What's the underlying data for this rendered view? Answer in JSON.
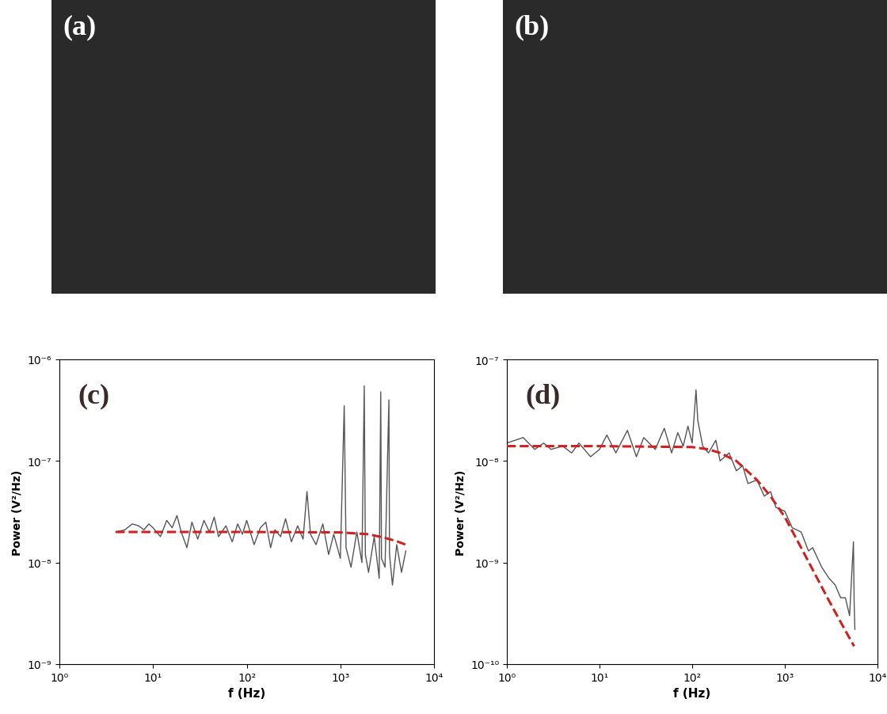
{
  "photos": [
    {
      "label": "(a)"
    },
    {
      "label": "(b)"
    }
  ],
  "chart_data": [
    {
      "type": "line",
      "panel_label": "(c)",
      "x_label": "f (Hz)",
      "y_label": "Power (V²/Hz)",
      "log": true,
      "grid": false,
      "xlim": [
        1,
        10000
      ],
      "xticks": [
        {
          "value": 1,
          "label": "10⁰"
        },
        {
          "value": 10,
          "label": "10¹"
        },
        {
          "value": 100,
          "label": "10²"
        },
        {
          "value": 1000,
          "label": "10³"
        },
        {
          "value": 10000,
          "label": "10⁴"
        }
      ],
      "ylim": [
        1e-09,
        1e-06
      ],
      "yticks": [
        {
          "value": 1e-09,
          "label": "10⁻⁹"
        },
        {
          "value": 1e-08,
          "label": "10⁻⁸"
        },
        {
          "value": 1e-07,
          "label": "10⁻⁷"
        },
        {
          "value": 1e-06,
          "label": "10⁻⁶"
        }
      ],
      "series": [
        {
          "color": "#555555",
          "line_style": "solid",
          "x": [
            4,
            5,
            6,
            7,
            8,
            9,
            10,
            12,
            14,
            16,
            18,
            20,
            23,
            26,
            30,
            35,
            40,
            45,
            50,
            60,
            70,
            80,
            90,
            100,
            120,
            140,
            160,
            180,
            200,
            230,
            260,
            300,
            350,
            400,
            440,
            480,
            550,
            650,
            750,
            850,
            1000,
            1100,
            1150,
            1300,
            1500,
            1700,
            1800,
            1850,
            2000,
            2300,
            2600,
            2700,
            2750,
            3000,
            3300,
            3350,
            3600,
            4000,
            4500,
            5000
          ],
          "values": [
            2e-08,
            2.1e-08,
            2.4e-08,
            2.3e-08,
            2.1e-08,
            2.4e-08,
            2.2e-08,
            1.8e-08,
            2.6e-08,
            2.2e-08,
            2.9e-08,
            2e-08,
            1.4e-08,
            2.5e-08,
            1.7e-08,
            2.6e-08,
            2e-08,
            2.8e-08,
            1.8e-08,
            2.3e-08,
            1.6e-08,
            2.4e-08,
            1.9e-08,
            2.6e-08,
            1.5e-08,
            2.2e-08,
            2.5e-08,
            1.4e-08,
            2.1e-08,
            1.8e-08,
            2.7e-08,
            1.6e-08,
            2.3e-08,
            1.7e-08,
            5e-08,
            1.9e-08,
            1.5e-08,
            2.4e-08,
            1.2e-08,
            1.9e-08,
            1.1e-08,
            3.5e-07,
            1.4e-08,
            9e-09,
            2e-08,
            1e-08,
            5.5e-07,
            1.2e-08,
            8e-09,
            1.8e-08,
            7e-09,
            4.8e-07,
            1.1e-08,
            9e-09,
            4e-07,
            1.2e-08,
            6e-09,
            1.5e-08,
            8e-09,
            1.3e-08
          ]
        },
        {
          "color": "#cc2222",
          "line_style": "dashed",
          "x": [
            4,
            100,
            1000,
            2000,
            3000,
            4000,
            5000
          ],
          "values": [
            2e-08,
            2e-08,
            1.98e-08,
            1.9e-08,
            1.75e-08,
            1.62e-08,
            1.5e-08
          ]
        }
      ]
    },
    {
      "type": "line",
      "panel_label": "(d)",
      "x_label": "f (Hz)",
      "y_label": "Power (V²/Hz)",
      "log": true,
      "grid": false,
      "xlim": [
        1,
        10000
      ],
      "xticks": [
        {
          "value": 1,
          "label": "10⁰"
        },
        {
          "value": 10,
          "label": "10¹"
        },
        {
          "value": 100,
          "label": "10²"
        },
        {
          "value": 1000,
          "label": "10³"
        },
        {
          "value": 10000,
          "label": "10⁴"
        }
      ],
      "ylim": [
        1e-10,
        1e-07
      ],
      "yticks": [
        {
          "value": 1e-10,
          "label": "10⁻¹⁰"
        },
        {
          "value": 1e-09,
          "label": "10⁻⁹"
        },
        {
          "value": 1e-08,
          "label": "10⁻⁸"
        },
        {
          "value": 1e-07,
          "label": "10⁻⁷"
        }
      ],
      "series": [
        {
          "color": "#555555",
          "line_style": "solid",
          "x": [
            1,
            1.5,
            2,
            2.5,
            3,
            4,
            5,
            6,
            8,
            10,
            12,
            15,
            20,
            25,
            30,
            40,
            50,
            60,
            70,
            80,
            90,
            100,
            110,
            115,
            130,
            150,
            180,
            200,
            250,
            300,
            350,
            400,
            500,
            600,
            700,
            800,
            1000,
            1200,
            1500,
            1800,
            2000,
            2500,
            3000,
            3500,
            4000,
            4500,
            5000,
            5500,
            5600,
            5700
          ],
          "values": [
            1.5e-08,
            1.7e-08,
            1.3e-08,
            1.5e-08,
            1.3e-08,
            1.4e-08,
            1.2e-08,
            1.5e-08,
            1.1e-08,
            1.3e-08,
            1.8e-08,
            1.2e-08,
            2e-08,
            1.1e-08,
            1.7e-08,
            1.3e-08,
            2.1e-08,
            1.2e-08,
            1.9e-08,
            1.4e-08,
            2.2e-08,
            1.5e-08,
            5e-08,
            2.5e-08,
            1.4e-08,
            1.2e-08,
            1.6e-08,
            1e-08,
            1.2e-08,
            8e-09,
            9e-09,
            6e-09,
            6.5e-09,
            4.5e-09,
            5e-09,
            3.5e-09,
            3.2e-09,
            2.2e-09,
            2e-09,
            1.3e-09,
            1.4e-09,
            9e-10,
            7e-10,
            6e-10,
            4.5e-10,
            4.5e-10,
            3e-10,
            1.6e-09,
            4e-10,
            2.2e-10
          ]
        },
        {
          "color": "#cc2222",
          "line_style": "dashed",
          "x": [
            1,
            10,
            100,
            150,
            200,
            300,
            500,
            700,
            1000,
            1500,
            2000,
            3000,
            4000,
            5000,
            5600
          ],
          "values": [
            1.4e-08,
            1.4e-08,
            1.37e-08,
            1.3e-08,
            1.2e-08,
            1e-08,
            6.5e-09,
            4.5e-09,
            2.8e-09,
            1.4e-09,
            8.5e-10,
            4.2e-10,
            2.6e-10,
            1.8e-10,
            1.5e-10
          ]
        }
      ]
    }
  ]
}
